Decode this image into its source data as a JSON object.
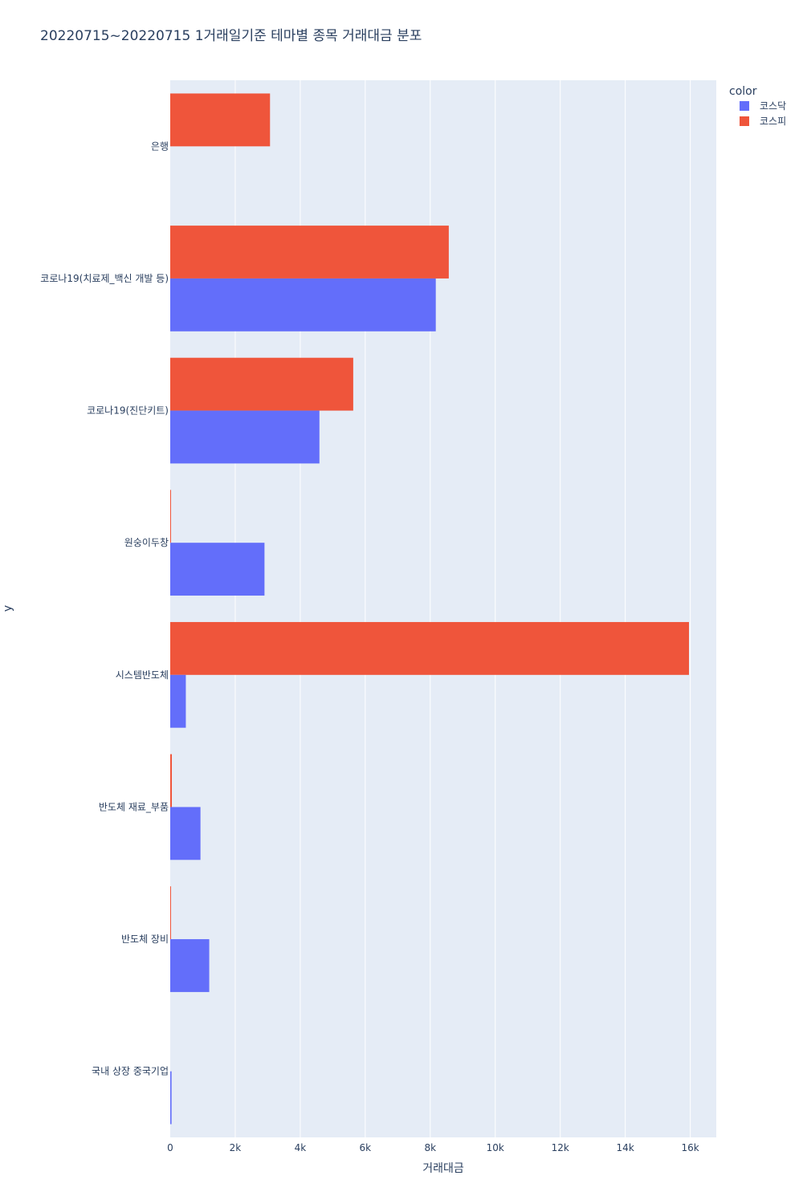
{
  "chart_data": {
    "type": "bar",
    "orientation": "horizontal",
    "title": "20220715~20220715 1거래일기준 테마별 종목 거래대금 분포",
    "xlabel": "거래대금",
    "ylabel": "y",
    "xlim": [
      0,
      16800
    ],
    "x_ticks": [
      0,
      2000,
      4000,
      6000,
      8000,
      10000,
      12000,
      14000,
      16000
    ],
    "x_tick_labels": [
      "0",
      "2k",
      "4k",
      "6k",
      "8k",
      "10k",
      "12k",
      "14k",
      "16k"
    ],
    "categories": [
      "은행",
      "코로나19(치료제_백신 개발 등)",
      "코로나19(진단키트)",
      "원숭이두창",
      "시스템반도체",
      "반도체 재료_부품",
      "반도체 장비",
      "국내 상장 중국기업"
    ],
    "series": [
      {
        "name": "코스닥",
        "color": "#636efa",
        "values": [
          0,
          8170,
          4590,
          2900,
          480,
          930,
          1200,
          40
        ]
      },
      {
        "name": "코스피",
        "color": "#ef553b",
        "values": [
          3070,
          8570,
          5630,
          20,
          15960,
          50,
          10,
          0
        ]
      }
    ],
    "legend": {
      "title": "color",
      "position": "top-right"
    },
    "grid": true,
    "colors": {
      "plot_bg": "#e5ecf6",
      "grid": "#ffffff",
      "text": "#2a3f5f"
    }
  }
}
